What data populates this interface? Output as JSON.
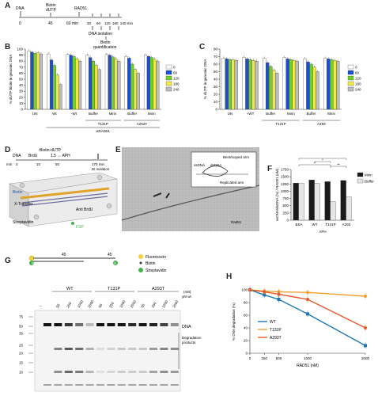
{
  "panels": {
    "A": {
      "letter": "A",
      "dna": "DNA",
      "biotin": "Biotin",
      "dutp": "dUTP",
      "rad51": "RAD51",
      "t0": "0",
      "t45": "45",
      "t60": "60 min",
      "t_list": [
        "30",
        "60",
        "120",
        "180",
        "240 min"
      ],
      "dna_isolation": "DNA isolation",
      "biotin_quant": "Biotin",
      "biotin_quant2": "quantification"
    },
    "B": {
      "letter": "B",
      "ylabel": "% dUTP biotin in genomic DNA",
      "yticks": [
        "0",
        "10",
        "20",
        "30",
        "40",
        "50",
        "60",
        "70",
        "80",
        "90",
        "100"
      ],
      "groups": [
        "UN",
        "",
        "",
        "",
        "",
        "",
        "",
        ""
      ],
      "xlabels": [
        "UN",
        "Wt",
        "-Wt",
        "Buffer",
        "Mirin",
        "Buffer",
        "Mirin"
      ],
      "sub_t131p": "T131P",
      "sub_a293t": "A293T",
      "sub_rad51": "ΔRAD51",
      "legend": [
        "0",
        "60",
        "120",
        "180",
        "240"
      ]
    },
    "C": {
      "letter": "C",
      "ylabel": "% dUTP in genomic DNA",
      "yticks": [
        "0",
        "10",
        "20",
        "30",
        "40",
        "50",
        "60",
        "70",
        "80"
      ],
      "xlabels": [
        "UN",
        "+WT",
        "Buffer",
        "Mirin",
        "Buffer",
        "Mirin"
      ],
      "sub_t131p": "T131P",
      "sub_a293t": "A293",
      "legend": [
        "0",
        "60",
        "120",
        "180",
        "240"
      ]
    },
    "D": {
      "letter": "D",
      "top_label": "Biotin-dUTP",
      "row_labels": [
        "DNA",
        "BrdU",
        "1.5 ↔ APH"
      ],
      "min_label": "min",
      "times": [
        "0",
        "10",
        "50",
        "170 min"
      ],
      "di_isolation": "DI isolation",
      "biotin": "Biotin",
      "x_transfer": "X-Transfer",
      "anti_brdu": "Anti BrdU",
      "streptavidin": "Streptavidin",
      "fsp": "FSP"
    },
    "E": {
      "letter": "E",
      "callouts": [
        "ssDNA",
        "dsDNA",
        "Bent/looped arm",
        "Replicated arm"
      ],
      "scale": "Rad51"
    },
    "F": {
      "letter": "F",
      "ylabel": "ssDNA/dsDNA (%) / RAD51 (nM)",
      "yticks": [
        "0",
        "250",
        "500",
        "750",
        "1000",
        "1250",
        "1500",
        "1750"
      ],
      "legend": [
        "Mirin",
        "Buffer"
      ],
      "xlabels": [
        "BSA",
        "WT",
        "T131P",
        "A293"
      ],
      "xtitle": "APH",
      "sig": [
        "*",
        "*",
        "*",
        "**"
      ]
    },
    "G": {
      "letter": "G",
      "len1": "45",
      "len2": "45",
      "legend": [
        "Fluorescein",
        "Biotin",
        "Streptavidin"
      ],
      "groups": [
        "WT",
        "T131P",
        "A293T"
      ],
      "conc_title": "(nM)",
      "conc_sub": "yM wt",
      "lane_conc": [
        "50",
        "250",
        "1000",
        "2000",
        "50",
        "250",
        "1000",
        "2000",
        "50",
        "250",
        "1000",
        "2000"
      ],
      "mw": [
        "75",
        "50",
        "35",
        "25",
        "20",
        "15",
        "10"
      ],
      "dna_label": "DNA",
      "degradation": "Degradation",
      "products": "products",
      "minus": "–"
    },
    "H": {
      "letter": "H",
      "ylabel": "% DNA degradation (%)",
      "xlabel": "RAD51 (nM)",
      "yticks": [
        "0",
        "20",
        "40",
        "60",
        "80",
        "100"
      ],
      "xticks": [
        "0",
        "250",
        "500",
        "1000",
        "2000"
      ],
      "legend": [
        "WT",
        "T131P",
        "A293T"
      ]
    }
  },
  "chart_data": [
    {
      "type": "bar",
      "id": "B",
      "categories": [
        "UN",
        "Wt",
        "-Wt",
        "Buffer T131P",
        "Mirin T131P",
        "Buffer A293T",
        "Mirin A293T"
      ],
      "series": [
        {
          "name": "0",
          "values": [
            97,
            92,
            91,
            90,
            91,
            88,
            90
          ]
        },
        {
          "name": "60",
          "values": [
            95,
            82,
            90,
            86,
            90,
            85,
            88
          ]
        },
        {
          "name": "120",
          "values": [
            93,
            73,
            88,
            80,
            87,
            75,
            86
          ]
        },
        {
          "name": "180",
          "values": [
            94,
            57,
            84,
            73,
            84,
            66,
            83
          ]
        },
        {
          "name": "240",
          "values": [
            92,
            41,
            80,
            66,
            80,
            60,
            80
          ]
        }
      ],
      "ylim": [
        0,
        100
      ]
    },
    {
      "type": "bar",
      "id": "C",
      "categories": [
        "UN",
        "+WT",
        "Buffer T131P",
        "Mirin T131P",
        "Buffer A293",
        "Mirin A293"
      ],
      "series": [
        {
          "name": "0",
          "values": [
            68,
            69,
            68,
            69,
            67,
            68
          ]
        },
        {
          "name": "60",
          "values": [
            67,
            67,
            62,
            67,
            63,
            67
          ]
        },
        {
          "name": "120",
          "values": [
            66,
            66,
            57,
            66,
            60,
            66
          ]
        },
        {
          "name": "180",
          "values": [
            66,
            65,
            52,
            65,
            56,
            65
          ]
        },
        {
          "name": "240",
          "values": [
            65,
            64,
            48,
            64,
            50,
            64
          ]
        }
      ],
      "ylim": [
        0,
        80
      ]
    },
    {
      "type": "bar",
      "id": "F",
      "categories": [
        "BSA",
        "WT",
        "T131P",
        "A293"
      ],
      "series": [
        {
          "name": "Mirin",
          "values": [
            1280,
            1390,
            1330,
            1370
          ]
        },
        {
          "name": "Buffer",
          "values": [
            1270,
            1270,
            640,
            800
          ]
        }
      ],
      "extra_bar": {
        "category": "BSA",
        "value": 1200
      },
      "ylim": [
        0,
        1750
      ]
    },
    {
      "type": "line",
      "id": "H",
      "x": [
        0,
        250,
        500,
        1000,
        2000
      ],
      "series": [
        {
          "name": "WT",
          "values": [
            100,
            92,
            85,
            62,
            12
          ]
        },
        {
          "name": "T131P",
          "values": [
            100,
            98,
            97,
            96,
            90
          ]
        },
        {
          "name": "A293T",
          "values": [
            100,
            97,
            93,
            85,
            40
          ]
        }
      ],
      "ylim": [
        0,
        100
      ],
      "xlim": [
        0,
        2000
      ]
    }
  ],
  "colors": {
    "s0": "#ffffff",
    "s60": "#1f4fd1",
    "s120": "#6fcf2f",
    "s180": "#f2e84a",
    "s240": "#bdbdbd",
    "mirin": "#1a1a1a",
    "buffer": "#e6e6e6",
    "wt": "#1f77b4",
    "t131p": "#f0a030",
    "a293t": "#e65a28"
  }
}
